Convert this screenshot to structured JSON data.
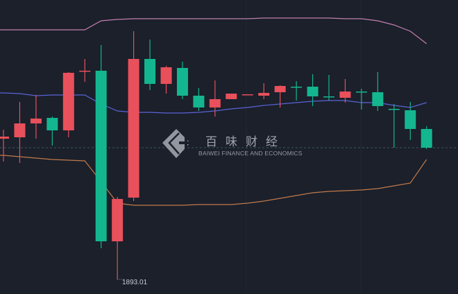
{
  "chart_data": {
    "type": "candlestick",
    "ylim": [
      1888.8,
      1973.6
    ],
    "grid": false,
    "up_color": "#e8505b",
    "down_color": "#14b690",
    "current_price": 1931.0,
    "low_annotation": "1893.01",
    "candles": [
      {
        "o": 1933.6,
        "c": 1934.2,
        "h": 1936.2,
        "l": 1927.0
      },
      {
        "o": 1934.0,
        "c": 1938.0,
        "h": 1944.2,
        "l": 1926.6
      },
      {
        "o": 1938.0,
        "c": 1939.4,
        "h": 1946.2,
        "l": 1933.6
      },
      {
        "o": 1939.6,
        "c": 1936.0,
        "h": 1940.0,
        "l": 1931.6
      },
      {
        "o": 1936.0,
        "c": 1952.6,
        "h": 1952.8,
        "l": 1934.0
      },
      {
        "o": 1953.0,
        "c": 1953.2,
        "h": 1956.6,
        "l": 1950.0
      },
      {
        "o": 1953.2,
        "c": 1904.0,
        "h": 1960.6,
        "l": 1902.0
      },
      {
        "o": 1904.0,
        "c": 1916.2,
        "h": 1916.8,
        "l": 1893.01
      },
      {
        "o": 1916.6,
        "c": 1956.6,
        "h": 1964.6,
        "l": 1915.6
      },
      {
        "o": 1956.6,
        "c": 1949.4,
        "h": 1962.2,
        "l": 1947.6
      },
      {
        "o": 1949.4,
        "c": 1954.2,
        "h": 1954.6,
        "l": 1946.6
      },
      {
        "o": 1954.0,
        "c": 1946.0,
        "h": 1955.8,
        "l": 1945.0
      },
      {
        "o": 1946.0,
        "c": 1942.6,
        "h": 1948.2,
        "l": 1941.6
      },
      {
        "o": 1942.6,
        "c": 1945.0,
        "h": 1950.4,
        "l": 1940.0
      },
      {
        "o": 1945.0,
        "c": 1946.6,
        "h": 1946.6,
        "l": 1945.0
      },
      {
        "o": 1946.4,
        "c": 1946.4,
        "h": 1946.4,
        "l": 1946.4
      },
      {
        "o": 1946.0,
        "c": 1946.8,
        "h": 1949.6,
        "l": 1945.0
      },
      {
        "o": 1947.0,
        "c": 1948.8,
        "h": 1949.0,
        "l": 1942.6
      },
      {
        "o": 1948.6,
        "c": 1948.5,
        "h": 1950.2,
        "l": 1944.6
      },
      {
        "o": 1948.6,
        "c": 1945.8,
        "h": 1952.2,
        "l": 1943.0
      },
      {
        "o": 1945.8,
        "c": 1945.7,
        "h": 1952.0,
        "l": 1944.6
      },
      {
        "o": 1945.4,
        "c": 1947.2,
        "h": 1950.8,
        "l": 1944.0
      },
      {
        "o": 1947.2,
        "c": 1947.1,
        "h": 1948.0,
        "l": 1942.0
      },
      {
        "o": 1947.0,
        "c": 1943.0,
        "h": 1952.8,
        "l": 1941.6
      },
      {
        "o": 1942.2,
        "c": 1942.1,
        "h": 1943.6,
        "l": 1931.0
      },
      {
        "o": 1941.8,
        "c": 1936.4,
        "h": 1944.2,
        "l": 1933.2
      },
      {
        "o": 1936.4,
        "c": 1931.0,
        "h": 1937.2,
        "l": 1930.6
      }
    ],
    "bands": {
      "upper": {
        "color": "#c47fb0",
        "values": [
          1965.0,
          1965.0,
          1965.0,
          1965.0,
          1965.0,
          1965.0,
          1967.6,
          1968.0,
          1968.2,
          1968.2,
          1968.2,
          1968.2,
          1968.2,
          1968.2,
          1968.2,
          1968.2,
          1968.4,
          1968.4,
          1968.4,
          1968.4,
          1968.4,
          1968.2,
          1968.2,
          1967.6,
          1966.4,
          1964.6,
          1961.0
        ]
      },
      "middle": {
        "color": "#5b63d6",
        "values": [
          1946.8,
          1946.6,
          1946.0,
          1946.2,
          1946.2,
          1946.2,
          1943.6,
          1941.6,
          1941.2,
          1941.2,
          1941.0,
          1941.0,
          1941.2,
          1941.6,
          1942.2,
          1942.6,
          1943.2,
          1943.6,
          1944.0,
          1944.4,
          1944.6,
          1944.6,
          1944.0,
          1944.0,
          1943.2,
          1942.6,
          1944.0
        ]
      },
      "lower": {
        "color": "#c27a4a",
        "values": [
          1928.8,
          1928.4,
          1928.0,
          1927.6,
          1927.4,
          1927.2,
          1921.2,
          1915.0,
          1914.4,
          1914.4,
          1914.4,
          1914.4,
          1914.6,
          1914.6,
          1914.6,
          1915.0,
          1915.6,
          1916.4,
          1917.2,
          1918.0,
          1918.4,
          1918.6,
          1918.8,
          1919.2,
          1920.0,
          1920.8,
          1927.6
        ]
      }
    }
  },
  "watermark": {
    "chinese": "百味财经",
    "english": "BAIWEI FINANCE AND ECONOMICS"
  }
}
